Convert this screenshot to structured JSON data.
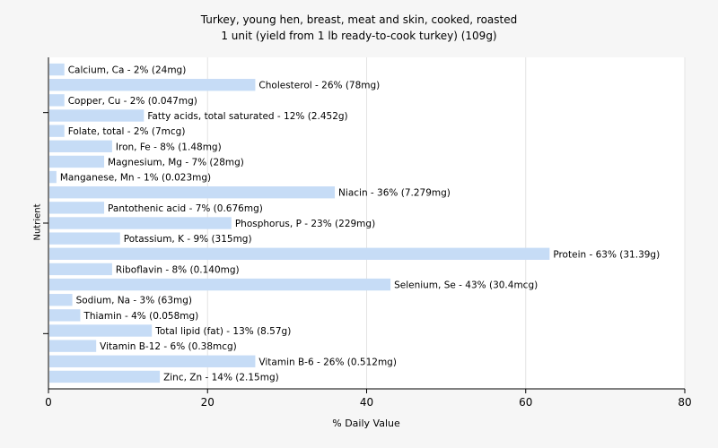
{
  "chart_data": {
    "type": "bar",
    "orientation": "horizontal",
    "title": "Turkey, young hen, breast, meat and skin, cooked, roasted",
    "subtitle": "1 unit (yield from 1 lb ready-to-cook turkey) (109g)",
    "xlabel": "% Daily Value",
    "ylabel": "Nutrient",
    "xlim": [
      0,
      80
    ],
    "xticks": [
      0,
      20,
      40,
      60,
      80
    ],
    "grid": true,
    "bar_color": "#c6dcf6",
    "categories": [
      "Calcium, Ca",
      "Cholesterol",
      "Copper, Cu",
      "Fatty acids, total saturated",
      "Folate, total",
      "Iron, Fe",
      "Magnesium, Mg",
      "Manganese, Mn",
      "Niacin",
      "Pantothenic acid",
      "Phosphorus, P",
      "Potassium, K",
      "Protein",
      "Riboflavin",
      "Selenium, Se",
      "Sodium, Na",
      "Thiamin",
      "Total lipid (fat)",
      "Vitamin B-12",
      "Vitamin B-6",
      "Zinc, Zn"
    ],
    "values": [
      2,
      26,
      2,
      12,
      2,
      8,
      7,
      1,
      36,
      7,
      23,
      9,
      63,
      8,
      43,
      3,
      4,
      13,
      6,
      26,
      14
    ],
    "labels": [
      "Calcium, Ca - 2% (24mg)",
      "Cholesterol - 26% (78mg)",
      "Copper, Cu - 2% (0.047mg)",
      "Fatty acids, total saturated - 12% (2.452g)",
      "Folate, total - 2% (7mcg)",
      "Iron, Fe - 8% (1.48mg)",
      "Magnesium, Mg - 7% (28mg)",
      "Manganese, Mn - 1% (0.023mg)",
      "Niacin - 36% (7.279mg)",
      "Pantothenic acid - 7% (0.676mg)",
      "Phosphorus, P - 23% (229mg)",
      "Potassium, K - 9% (315mg)",
      "Protein - 63% (31.39g)",
      "Riboflavin - 8% (0.140mg)",
      "Selenium, Se - 43% (30.4mcg)",
      "Sodium, Na - 3% (63mg)",
      "Thiamin - 4% (0.058mg)",
      "Total lipid (fat) - 13% (8.57g)",
      "Vitamin B-12 - 6% (0.38mcg)",
      "Vitamin B-6 - 26% (0.512mg)",
      "Zinc, Zn - 14% (2.15mg)"
    ]
  }
}
